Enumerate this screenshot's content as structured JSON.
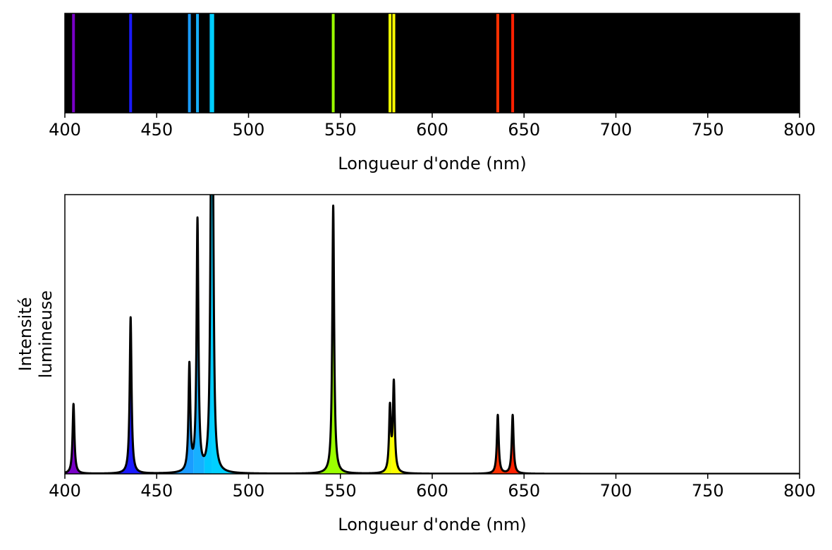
{
  "chart_data": [
    {
      "type": "spectrum-bands",
      "xlabel": "Longueur d'onde (nm)",
      "ylabel": "",
      "xlim": [
        400,
        800
      ],
      "xticks": [
        "400",
        "450",
        "500",
        "550",
        "600",
        "650",
        "700",
        "750",
        "800"
      ],
      "background": "#000000",
      "lines": [
        {
          "x": 404.7,
          "color": "#7a00c8"
        },
        {
          "x": 435.8,
          "color": "#1a1aff"
        },
        {
          "x": 467.8,
          "color": "#1a9cff"
        },
        {
          "x": 472.2,
          "color": "#17b0ff"
        },
        {
          "x": 479.6,
          "color": "#00c8ff"
        },
        {
          "x": 480.5,
          "color": "#00d0ff"
        },
        {
          "x": 546.1,
          "color": "#9cff00"
        },
        {
          "x": 577.0,
          "color": "#f0ff00"
        },
        {
          "x": 579.1,
          "color": "#ffff00"
        },
        {
          "x": 635.7,
          "color": "#ff3000"
        },
        {
          "x": 643.8,
          "color": "#ff2000"
        }
      ]
    },
    {
      "type": "line",
      "xlabel": "Longueur d'onde (nm)",
      "ylabel": "Intensité lumineuse",
      "ylabel_lines": [
        "Intensité",
        "lumineuse"
      ],
      "xlim": [
        400,
        800
      ],
      "ylim": [
        0,
        1
      ],
      "xticks": [
        "400",
        "450",
        "500",
        "550",
        "600",
        "650",
        "700",
        "750",
        "800"
      ],
      "line_color": "#000000",
      "fill": "spectral color under curve",
      "peaks": [
        {
          "x": 404.7,
          "height": 0.25,
          "color": "#7a00c8"
        },
        {
          "x": 435.8,
          "height": 0.56,
          "color": "#1a1aff"
        },
        {
          "x": 467.8,
          "height": 0.38,
          "color": "#1a9cff"
        },
        {
          "x": 472.2,
          "height": 0.9,
          "color": "#17b0ff"
        },
        {
          "x": 479.6,
          "height": 0.86,
          "color": "#00c8ff"
        },
        {
          "x": 480.5,
          "height": 1.03,
          "color": "#00d0ff"
        },
        {
          "x": 546.1,
          "height": 0.96,
          "color": "#9cff00"
        },
        {
          "x": 577.0,
          "height": 0.23,
          "color": "#f0ff00"
        },
        {
          "x": 579.1,
          "height": 0.32,
          "color": "#ffff00"
        },
        {
          "x": 635.7,
          "height": 0.21,
          "color": "#ff3000"
        },
        {
          "x": 643.8,
          "height": 0.21,
          "color": "#ff2000"
        }
      ]
    }
  ]
}
